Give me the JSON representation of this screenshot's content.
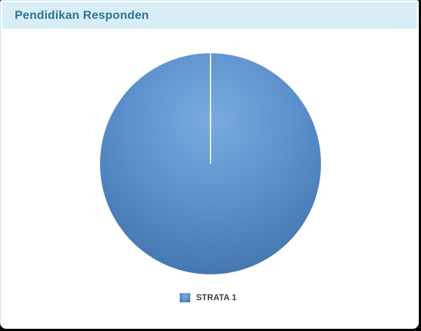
{
  "header": {
    "title": "Pendidikan Responden"
  },
  "chart_data": {
    "type": "pie",
    "title": "Pendidikan Responden",
    "categories": [
      "STRATA 1"
    ],
    "values": [
      100
    ],
    "unit": "percent",
    "legend_position": "bottom",
    "series_colors": [
      "#5b90cc"
    ],
    "start_angle": 90,
    "notes": "single full-circle slice, thin white radius separator at 12 o'clock"
  },
  "legend": {
    "items": [
      {
        "label": "STRATA 1",
        "color": "#5b90cc"
      }
    ]
  },
  "colors": {
    "page_bg": "#000000",
    "card_bg": "#ffffff",
    "card_border": "#c9e4f1",
    "header_bg": "#d9edf7",
    "header_text": "#2d7493",
    "pie_light": "#79abdf",
    "pie_mid": "#5b90cc",
    "pie_edge": "#3a6ba3",
    "legend_text": "#3f3f3f"
  }
}
